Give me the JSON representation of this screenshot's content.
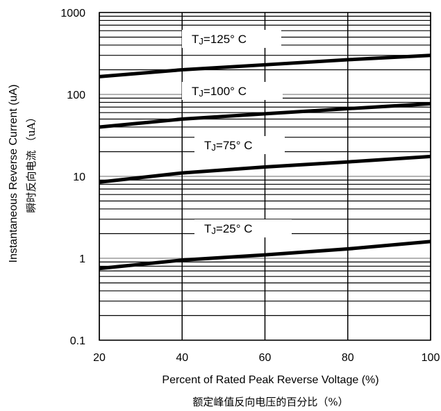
{
  "chart_data": {
    "type": "line",
    "y_scale": "log",
    "grid": true,
    "xlim": [
      20,
      100
    ],
    "ylim": [
      0.1,
      1000
    ],
    "x_ticks": [
      "20",
      "40",
      "60",
      "80",
      "100"
    ],
    "y_ticks": [
      "0.1",
      "1",
      "10",
      "100",
      "1000"
    ],
    "x_tick_values": [
      20,
      40,
      60,
      80,
      100
    ],
    "y_tick_values": [
      0.1,
      1,
      10,
      100,
      1000
    ],
    "xlabel": "Percent of Rated Peak Reverse Voltage (%)",
    "xlabel_sub": "额定峰值反向电压的百分比（%）",
    "ylabel": "Instantaneous Reverse Current (uA)",
    "ylabel_sub": "瞬时反向电流 （uA）",
    "series": [
      {
        "name": "TJ=125° C",
        "label_parts": {
          "t": "T",
          "sub": "J",
          "rest": "=125° C"
        },
        "x": [
          20,
          40,
          60,
          80,
          100
        ],
        "values": [
          165,
          200,
          230,
          265,
          300
        ]
      },
      {
        "name": "TJ=100° C",
        "label_parts": {
          "t": "T",
          "sub": "J",
          "rest": "=100° C"
        },
        "x": [
          20,
          40,
          60,
          80,
          100
        ],
        "values": [
          40,
          50,
          58,
          67,
          77
        ]
      },
      {
        "name": "TJ=75° C",
        "label_parts": {
          "t": "T",
          "sub": "J",
          "rest": "=75° C"
        },
        "x": [
          20,
          40,
          60,
          80,
          100
        ],
        "values": [
          8.5,
          11,
          13,
          15,
          17.5
        ]
      },
      {
        "name": "TJ=25° C",
        "label_parts": {
          "t": "T",
          "sub": "J",
          "rest": "=25° C"
        },
        "x": [
          20,
          40,
          60,
          80,
          100
        ],
        "values": [
          0.75,
          0.95,
          1.1,
          1.3,
          1.6
        ]
      }
    ]
  }
}
